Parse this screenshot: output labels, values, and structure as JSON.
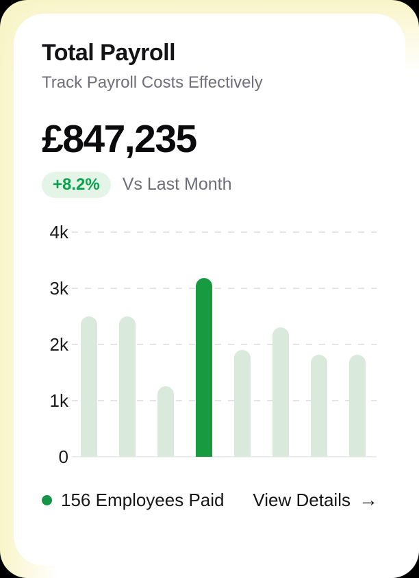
{
  "card": {
    "title": "Total Payroll",
    "subtitle": "Track Payroll Costs Effectively",
    "amount": "£847,235",
    "change_badge": "+8.2%",
    "change_label": "Vs Last Month"
  },
  "chart_data": {
    "type": "bar",
    "values": [
      2500,
      2500,
      1250,
      3180,
      1900,
      2300,
      1820,
      1820
    ],
    "highlight_index": 3,
    "y_ticks": [
      "4k",
      "3k",
      "2k",
      "1k",
      "0"
    ],
    "ylim": [
      0,
      4000
    ],
    "grid": "horizontal dashed, solid baseline",
    "legend_position": "bottom-left",
    "bar_color": "#d9e9db",
    "highlight_color": "#189b40"
  },
  "footer": {
    "legend_label": "156 Employees Paid",
    "link_label": "View Details",
    "arrow_icon": "→"
  },
  "colors": {
    "badge_bg": "#e4f5e8",
    "badge_text": "#0aa14f",
    "legend_dot": "#169447",
    "frame_glow": "#f8f4c6",
    "card_bg": "#ffffff",
    "page_bg": "#000000"
  }
}
